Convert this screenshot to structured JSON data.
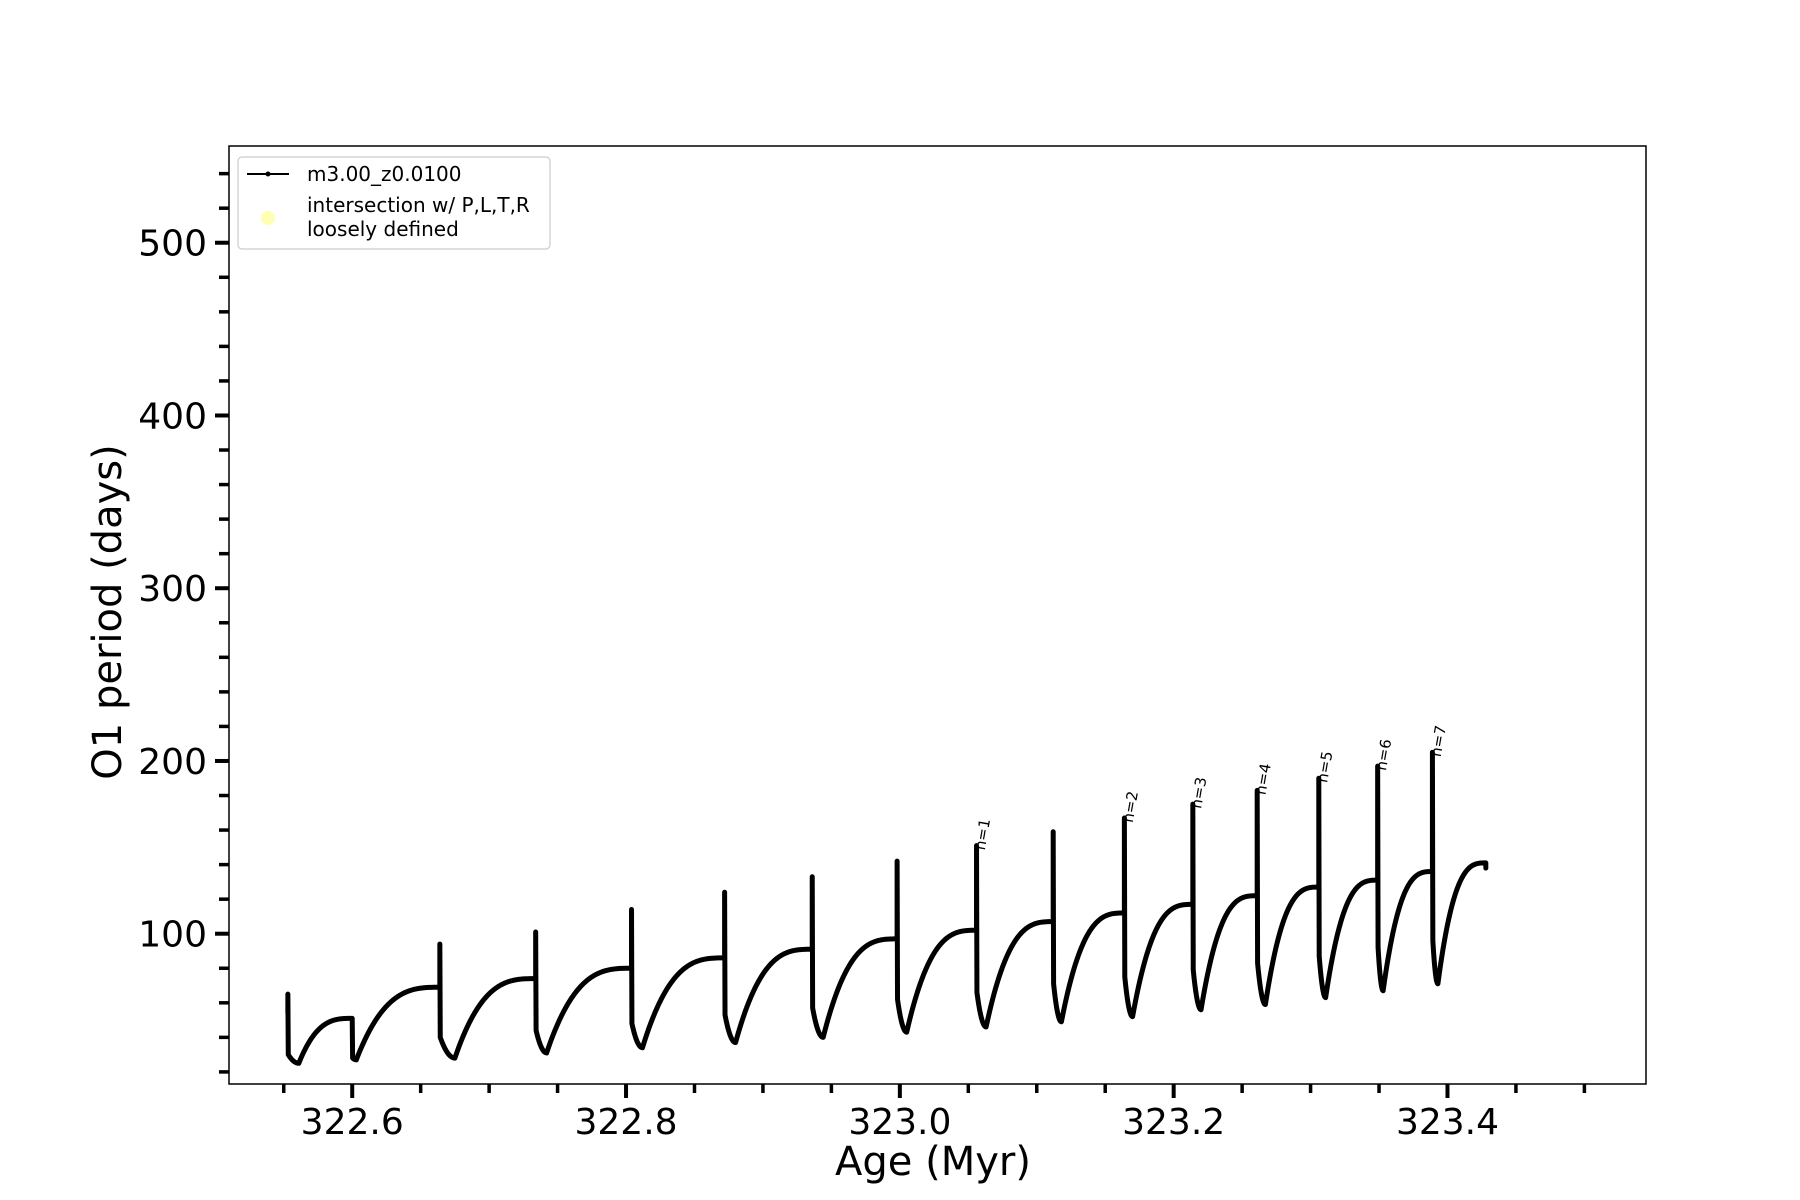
{
  "chart_data": {
    "type": "line",
    "xlabel": "Age (Myr)",
    "ylabel": "O1 period (days)",
    "xlim": [
      322.51,
      323.545
    ],
    "ylim": [
      13,
      556
    ],
    "x_ticks": [
      322.6,
      322.8,
      323.0,
      323.2,
      323.4
    ],
    "x_tick_labels": [
      "322.6",
      "322.8",
      "323.0",
      "323.2",
      "323.4"
    ],
    "y_ticks": [
      100,
      200,
      300,
      400,
      500
    ],
    "y_tick_labels": [
      "100",
      "200",
      "300",
      "400",
      "500"
    ],
    "x_minor_step": 0.05,
    "y_minor_step": 20,
    "grid": false,
    "legend_position": "top-left",
    "legend": [
      {
        "label": "m3.00_z0.0100",
        "kind": "line-marker",
        "color": "#000000"
      },
      {
        "label": "intersection w/ P,L,T,R\nloosely defined",
        "kind": "dot",
        "color": "#ffffb3"
      }
    ],
    "series": [
      {
        "name": "m3.00_z0.0100",
        "color": "#000000",
        "start": {
          "x": 322.553,
          "y": 54
        },
        "cycles": [
          {
            "x_end": 322.553,
            "spike": 65,
            "post": 30,
            "min_x": 322.561,
            "min_y": 25,
            "plateau": 51
          },
          {
            "x_end": 322.6,
            "spike": 50,
            "post": 28,
            "min_x": 322.603,
            "min_y": 27,
            "plateau": 69
          },
          {
            "x_end": 322.664,
            "spike": 94,
            "post": 40,
            "min_x": 322.675,
            "min_y": 28,
            "plateau": 74
          },
          {
            "x_end": 322.734,
            "spike": 101,
            "post": 44,
            "min_x": 322.742,
            "min_y": 31,
            "plateau": 80
          },
          {
            "x_end": 322.804,
            "spike": 114,
            "post": 48,
            "min_x": 322.812,
            "min_y": 34,
            "plateau": 86
          },
          {
            "x_end": 322.872,
            "spike": 124,
            "post": 53,
            "min_x": 322.88,
            "min_y": 37,
            "plateau": 91
          },
          {
            "x_end": 322.936,
            "spike": 133,
            "post": 57,
            "min_x": 322.944,
            "min_y": 40,
            "plateau": 97
          },
          {
            "x_end": 322.998,
            "spike": 142,
            "post": 62,
            "min_x": 323.005,
            "min_y": 43,
            "plateau": 102
          },
          {
            "x_end": 323.056,
            "spike": 151,
            "post": 66,
            "min_x": 323.063,
            "min_y": 46,
            "plateau": 107
          },
          {
            "x_end": 323.112,
            "spike": 159,
            "post": 71,
            "min_x": 323.118,
            "min_y": 49,
            "plateau": 112
          },
          {
            "x_end": 323.164,
            "spike": 167,
            "post": 75,
            "min_x": 323.17,
            "min_y": 52,
            "plateau": 117
          },
          {
            "x_end": 323.214,
            "spike": 175,
            "post": 79,
            "min_x": 323.22,
            "min_y": 56,
            "plateau": 122
          },
          {
            "x_end": 323.261,
            "spike": 183,
            "post": 83,
            "min_x": 323.267,
            "min_y": 59,
            "plateau": 127
          },
          {
            "x_end": 323.306,
            "spike": 190,
            "post": 87,
            "min_x": 323.311,
            "min_y": 63,
            "plateau": 131
          },
          {
            "x_end": 323.349,
            "spike": 197,
            "post": 92,
            "min_x": 323.353,
            "min_y": 67,
            "plateau": 136
          },
          {
            "x_end": 323.389,
            "spike": 205,
            "post": 96,
            "min_x": 323.393,
            "min_y": 71,
            "plateau": 141
          }
        ],
        "end_x": 323.428,
        "end_y": 138
      }
    ],
    "annotations": [
      {
        "text": "n=1",
        "x": 323.062,
        "y": 148
      },
      {
        "text": "n=2",
        "x": 323.17,
        "y": 164
      },
      {
        "text": "n=3",
        "x": 323.22,
        "y": 172
      },
      {
        "text": "n=4",
        "x": 323.267,
        "y": 180
      },
      {
        "text": "n=5",
        "x": 323.312,
        "y": 187
      },
      {
        "text": "n=6",
        "x": 323.355,
        "y": 194
      },
      {
        "text": "n=7",
        "x": 323.395,
        "y": 202
      }
    ]
  }
}
